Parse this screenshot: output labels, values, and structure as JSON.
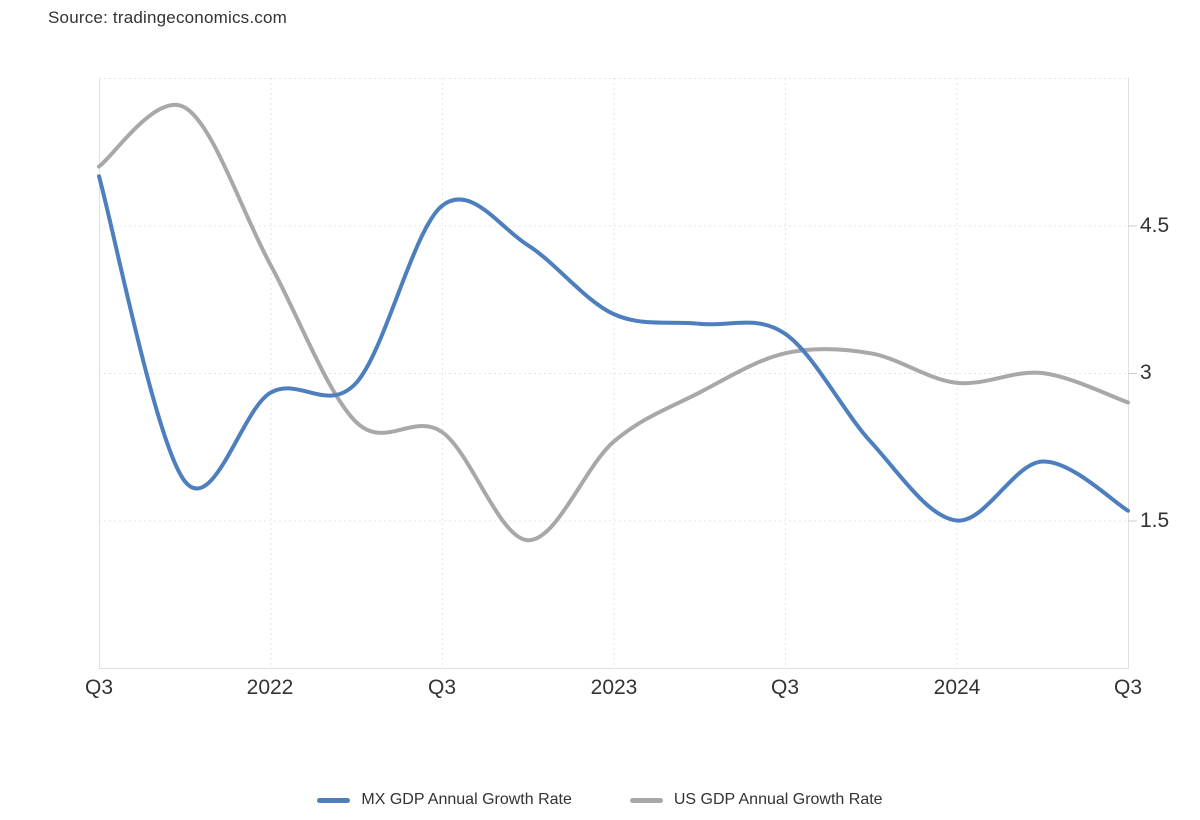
{
  "source": {
    "text": "Source: tradingeconomics.com"
  },
  "chart_data": {
    "type": "line",
    "title": "",
    "xlabel": "",
    "ylabel": "",
    "ylim": [
      0,
      6
    ],
    "grid": "dotted",
    "legend_position": "bottom",
    "categories": [
      "Q3 2021",
      "Q4 2021",
      "Q1 2022",
      "Q2 2022",
      "Q3 2022",
      "Q4 2022",
      "Q1 2023",
      "Q2 2023",
      "Q3 2023",
      "Q4 2023",
      "Q1 2024",
      "Q2 2024",
      "Q3 2024"
    ],
    "series": [
      {
        "name": "US GDP Annual Growth Rate",
        "color": "#a8a8a8",
        "values": [
          5.1,
          5.7,
          4.1,
          2.5,
          2.4,
          1.3,
          2.3,
          2.8,
          3.2,
          3.2,
          2.9,
          3.0,
          2.7
        ]
      },
      {
        "name": "MX GDP Annual Growth Rate",
        "color": "#4d7ebe",
        "values": [
          5.0,
          1.9,
          2.8,
          2.9,
          4.7,
          4.3,
          3.6,
          3.5,
          3.4,
          2.3,
          1.5,
          2.1,
          1.6
        ]
      }
    ],
    "x_tick_labels": [
      "Q3",
      "2022",
      "Q3",
      "2023",
      "Q3",
      "2024",
      "Q3"
    ],
    "x_tick_indices": [
      0,
      2,
      4,
      6,
      8,
      10,
      12
    ],
    "y_ticks": [
      {
        "value": 4.5,
        "label": "4.5"
      },
      {
        "value": 3,
        "label": "3"
      },
      {
        "value": 1.5,
        "label": "1.5"
      }
    ],
    "y_grid_values": [
      6,
      4.5,
      3,
      1.5
    ],
    "colors": {
      "grid": "#e6e6e6",
      "border": "#e0e0e0",
      "tick": "#cccccc",
      "text": "#333333"
    }
  }
}
